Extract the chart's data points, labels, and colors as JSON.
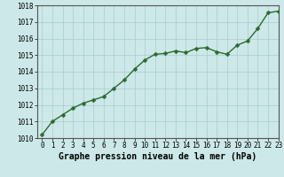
{
  "x": [
    0,
    1,
    2,
    3,
    4,
    5,
    6,
    7,
    8,
    9,
    10,
    11,
    12,
    13,
    14,
    15,
    16,
    17,
    18,
    19,
    20,
    21,
    22,
    23
  ],
  "y": [
    1010.2,
    1011.0,
    1011.4,
    1011.8,
    1012.1,
    1012.3,
    1012.5,
    1013.0,
    1013.5,
    1014.15,
    1014.7,
    1015.05,
    1015.1,
    1015.25,
    1015.15,
    1015.4,
    1015.45,
    1015.2,
    1015.05,
    1015.6,
    1015.85,
    1016.6,
    1017.55,
    1017.65
  ],
  "ylim": [
    1010,
    1018
  ],
  "xlim": [
    -0.5,
    23
  ],
  "yticks": [
    1010,
    1011,
    1012,
    1013,
    1014,
    1015,
    1016,
    1017,
    1018
  ],
  "xticks": [
    0,
    1,
    2,
    3,
    4,
    5,
    6,
    7,
    8,
    9,
    10,
    11,
    12,
    13,
    14,
    15,
    16,
    17,
    18,
    19,
    20,
    21,
    22,
    23
  ],
  "line_color": "#2d6a2d",
  "marker_color": "#2d6a2d",
  "bg_color": "#cce8e8",
  "grid_color": "#aacccc",
  "outer_bg": "#cce8e8",
  "xlabel": "Graphe pression niveau de la mer (hPa)",
  "xlabel_fontsize": 7,
  "tick_fontsize": 5.5,
  "line_width": 1.0,
  "marker_size": 2.5
}
